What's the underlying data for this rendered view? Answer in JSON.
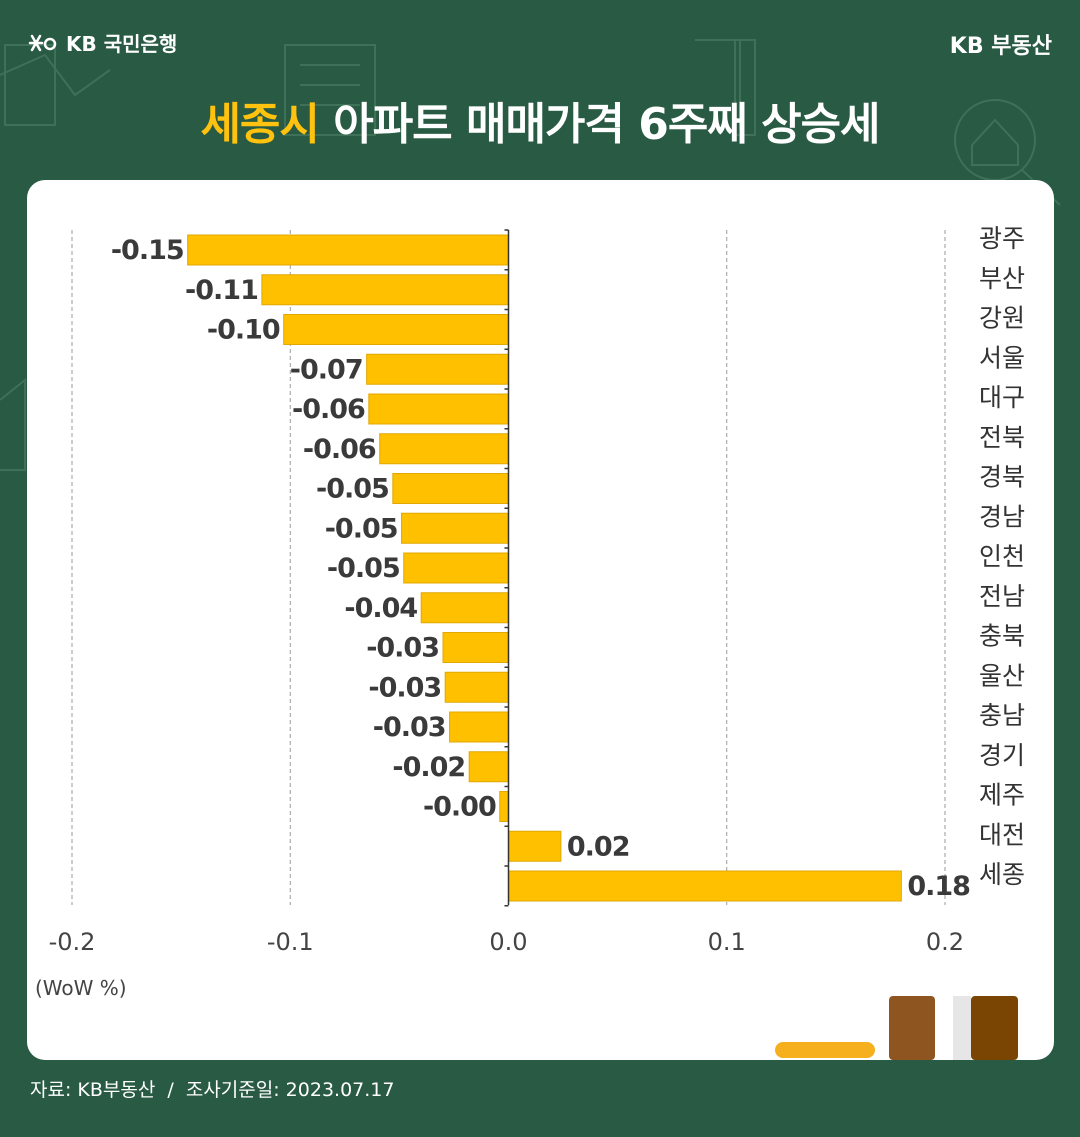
{
  "header": {
    "bank_logo_text": "KB 국민은행",
    "brand_right": "KB 부동산",
    "title_highlight": "세종시",
    "title_rest": " 아파트 매매가격 6주째 상승세"
  },
  "colors": {
    "background": "#285a44",
    "bar": "#ffc000",
    "bar_stroke": "#e0a800",
    "highlight": "#ffc20e"
  },
  "chart_data": {
    "type": "bar",
    "orientation": "horizontal",
    "title": "세종시 아파트 매매가격 6주째 상승세",
    "xlabel": "(WoW %)",
    "ylabel": "",
    "xlim": [
      -0.2,
      0.2
    ],
    "x_ticks": [
      "-0.2",
      "-0.1",
      "0.0",
      "0.1",
      "0.2"
    ],
    "grid": "vertical dashed",
    "categories": [
      "광주",
      "부산",
      "강원",
      "서울",
      "대구",
      "전북",
      "경북",
      "경남",
      "인천",
      "전남",
      "충북",
      "울산",
      "충남",
      "경기",
      "제주",
      "대전",
      "세종"
    ],
    "values": [
      -0.147,
      -0.113,
      -0.103,
      -0.065,
      -0.064,
      -0.059,
      -0.053,
      -0.049,
      -0.048,
      -0.04,
      -0.03,
      -0.029,
      -0.027,
      -0.018,
      -0.004,
      0.024,
      0.18
    ],
    "labels": [
      "-0.15",
      "-0.11",
      "-0.10",
      "-0.07",
      "-0.06",
      "-0.06",
      "-0.05",
      "-0.05",
      "-0.05",
      "-0.04",
      "-0.03",
      "-0.03",
      "-0.03",
      "-0.02",
      "-0.00",
      "0.02",
      "0.18"
    ]
  },
  "footer": {
    "source": "자료: KB부동산",
    "separator": "/",
    "survey_date": "조사기준일: 2023.07.17"
  }
}
